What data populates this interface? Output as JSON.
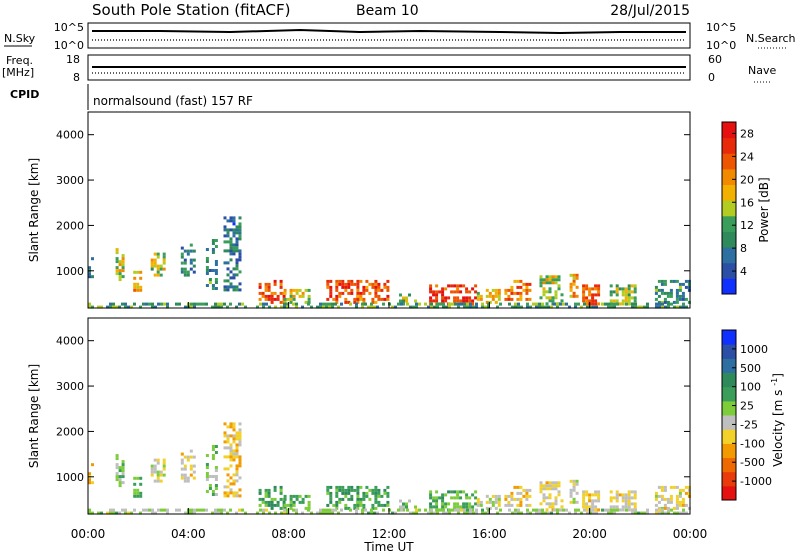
{
  "header": {
    "title": "South Pole Station (fitACF)",
    "beam": "Beam 10",
    "date": "28/Jul/2015"
  },
  "panels": {
    "nsky": {
      "label": "N.Sky",
      "left_ticks": [
        "10^5",
        "10^0"
      ],
      "right_ticks": [
        "10^5",
        "10^0"
      ],
      "right_label": "N.Search"
    },
    "freq": {
      "label_top": "Freq.",
      "label_unit": "[MHz]",
      "left_ticks": [
        "18",
        "8"
      ],
      "right_ticks": [
        "60",
        "0"
      ],
      "right_label": "Nave"
    },
    "cpid": {
      "label": "CPID",
      "text": "normalsound (fast) 157 RF"
    }
  },
  "chart_data": [
    {
      "type": "heatmap",
      "name": "power-panel",
      "ylabel": "Slant Range [km]",
      "xlabel": "",
      "xlim": [
        "00:00",
        "24:00"
      ],
      "ylim": [
        180,
        4500
      ],
      "yticks": [
        1000,
        2000,
        3000,
        4000
      ],
      "colorbar": {
        "label": "Power [dB]",
        "ticks": [
          "4",
          "8",
          "12",
          "16",
          "20",
          "24",
          "28"
        ],
        "colors": [
          "#1030ff",
          "#2c4fa6",
          "#2c6fa0",
          "#2e8a5a",
          "#3a9e5a",
          "#b3cc22",
          "#f2b000",
          "#f28a00",
          "#ee5500",
          "#e82a0a",
          "#e61010"
        ],
        "range": [
          0,
          30
        ]
      },
      "patches": [
        {
          "t": [
            0.0,
            0.2
          ],
          "r": [
            900,
            1300
          ],
          "level": 0.2
        },
        {
          "t": [
            1.1,
            1.4
          ],
          "r": [
            800,
            1500
          ],
          "level": 0.55
        },
        {
          "t": [
            1.8,
            2.1
          ],
          "r": [
            600,
            1000
          ],
          "level": 0.65
        },
        {
          "t": [
            2.5,
            3.0
          ],
          "r": [
            900,
            1400
          ],
          "level": 0.5
        },
        {
          "t": [
            3.7,
            4.2
          ],
          "r": [
            900,
            1600
          ],
          "level": 0.25
        },
        {
          "t": [
            4.7,
            5.1
          ],
          "r": [
            600,
            1700
          ],
          "level": 0.3
        },
        {
          "t": [
            5.4,
            6.1
          ],
          "r": [
            600,
            2200
          ],
          "level": 0.22
        },
        {
          "t": [
            6.8,
            7.8
          ],
          "r": [
            300,
            800
          ],
          "level": 0.82
        },
        {
          "t": [
            7.8,
            8.8
          ],
          "r": [
            300,
            600
          ],
          "level": 0.55
        },
        {
          "t": [
            9.5,
            10.7
          ],
          "r": [
            300,
            800
          ],
          "level": 0.85
        },
        {
          "t": [
            10.7,
            12.0
          ],
          "r": [
            300,
            800
          ],
          "level": 0.8
        },
        {
          "t": [
            12.4,
            13.0
          ],
          "r": [
            300,
            500
          ],
          "level": 0.5
        },
        {
          "t": [
            13.6,
            15.5
          ],
          "r": [
            300,
            700
          ],
          "level": 0.9
        },
        {
          "t": [
            15.5,
            16.4
          ],
          "r": [
            300,
            600
          ],
          "level": 0.55
        },
        {
          "t": [
            16.6,
            17.6
          ],
          "r": [
            300,
            800
          ],
          "level": 0.75
        },
        {
          "t": [
            18.0,
            18.9
          ],
          "r": [
            300,
            900
          ],
          "level": 0.5
        },
        {
          "t": [
            19.2,
            19.5
          ],
          "r": [
            300,
            1000
          ],
          "level": 0.65
        },
        {
          "t": [
            19.7,
            20.3
          ],
          "r": [
            300,
            700
          ],
          "level": 0.8
        },
        {
          "t": [
            20.8,
            21.8
          ],
          "r": [
            300,
            700
          ],
          "level": 0.45
        },
        {
          "t": [
            22.6,
            24.0
          ],
          "r": [
            300,
            800
          ],
          "level": 0.3
        },
        {
          "t": [
            0.0,
            24.0
          ],
          "r": [
            180,
            300
          ],
          "level": 0.35
        }
      ]
    },
    {
      "type": "heatmap",
      "name": "velocity-panel",
      "ylabel": "Slant Range [km]",
      "xlabel": "Time UT",
      "xlim": [
        "00:00",
        "24:00"
      ],
      "ylim": [
        180,
        4500
      ],
      "yticks": [
        1000,
        2000,
        3000,
        4000
      ],
      "xticks": [
        "00:00",
        "04:00",
        "08:00",
        "12:00",
        "16:00",
        "20:00",
        "00:00"
      ],
      "colorbar": {
        "label": "Velocity [m s^-1]",
        "ticks": [
          "1000",
          "500",
          "100",
          "25",
          "-25",
          "-100",
          "-500",
          "-1000"
        ],
        "colors": [
          "#1030ff",
          "#2c4fa6",
          "#2c6fa0",
          "#2e8a5a",
          "#3a9e5a",
          "#7dcc3a",
          "#bfbfbf",
          "#f2d22a",
          "#f29a00",
          "#ee6a00",
          "#e83a0a",
          "#e61010"
        ],
        "range": [
          -1000,
          1000
        ]
      },
      "patches": [
        {
          "t": [
            0.0,
            0.2
          ],
          "r": [
            900,
            1300
          ],
          "v": -400
        },
        {
          "t": [
            1.1,
            1.4
          ],
          "r": [
            800,
            1500
          ],
          "v": 80
        },
        {
          "t": [
            1.8,
            2.1
          ],
          "r": [
            600,
            1000
          ],
          "v": 200
        },
        {
          "t": [
            2.5,
            3.0
          ],
          "r": [
            900,
            1400
          ],
          "v": -150
        },
        {
          "t": [
            3.7,
            4.2
          ],
          "r": [
            900,
            1600
          ],
          "v": -200
        },
        {
          "t": [
            4.7,
            5.1
          ],
          "r": [
            600,
            1700
          ],
          "v": 100
        },
        {
          "t": [
            5.4,
            6.1
          ],
          "r": [
            600,
            2200
          ],
          "v": -300
        },
        {
          "t": [
            6.8,
            7.8
          ],
          "r": [
            300,
            800
          ],
          "v": 300
        },
        {
          "t": [
            7.8,
            8.8
          ],
          "r": [
            300,
            600
          ],
          "v": 200
        },
        {
          "t": [
            9.5,
            10.7
          ],
          "r": [
            300,
            800
          ],
          "v": 300
        },
        {
          "t": [
            10.7,
            12.0
          ],
          "r": [
            300,
            800
          ],
          "v": 250
        },
        {
          "t": [
            12.4,
            13.0
          ],
          "r": [
            300,
            500
          ],
          "v": 150
        },
        {
          "t": [
            13.6,
            15.5
          ],
          "r": [
            300,
            700
          ],
          "v": 200
        },
        {
          "t": [
            15.5,
            16.4
          ],
          "r": [
            300,
            600
          ],
          "v": -150
        },
        {
          "t": [
            16.6,
            17.6
          ],
          "r": [
            300,
            800
          ],
          "v": -250
        },
        {
          "t": [
            18.0,
            18.9
          ],
          "r": [
            300,
            900
          ],
          "v": -200
        },
        {
          "t": [
            19.2,
            19.5
          ],
          "r": [
            300,
            1000
          ],
          "v": -120
        },
        {
          "t": [
            19.7,
            20.3
          ],
          "r": [
            300,
            700
          ],
          "v": -250
        },
        {
          "t": [
            20.8,
            21.8
          ],
          "r": [
            300,
            700
          ],
          "v": -200
        },
        {
          "t": [
            22.6,
            24.0
          ],
          "r": [
            300,
            800
          ],
          "v": -180
        },
        {
          "t": [
            0.0,
            24.0
          ],
          "r": [
            180,
            300
          ],
          "v": 0
        }
      ]
    }
  ]
}
